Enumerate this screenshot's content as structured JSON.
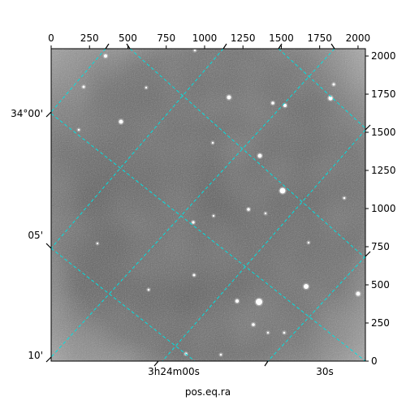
{
  "chart_data": {
    "type": "image",
    "xlabel": "pos.eq.ra",
    "ylabel": "",
    "pixel_axes": {
      "x_ticks": [
        0,
        250,
        500,
        750,
        1000,
        1250,
        1500,
        1750,
        2000
      ],
      "y_ticks": [
        0,
        250,
        500,
        750,
        1000,
        1250,
        1500,
        1750,
        2000
      ],
      "xlim": [
        0,
        2048
      ],
      "ylim": [
        0,
        2048
      ]
    },
    "world_axes": {
      "ra_tick_labels": [
        "3h24m00s",
        "30s"
      ],
      "dec_tick_labels": [
        "34°00'",
        "05'",
        "10'"
      ]
    },
    "grid": true,
    "grid_color": "#00e0e0",
    "image_colormap": "gray",
    "background_color": "#5a5a5a"
  }
}
